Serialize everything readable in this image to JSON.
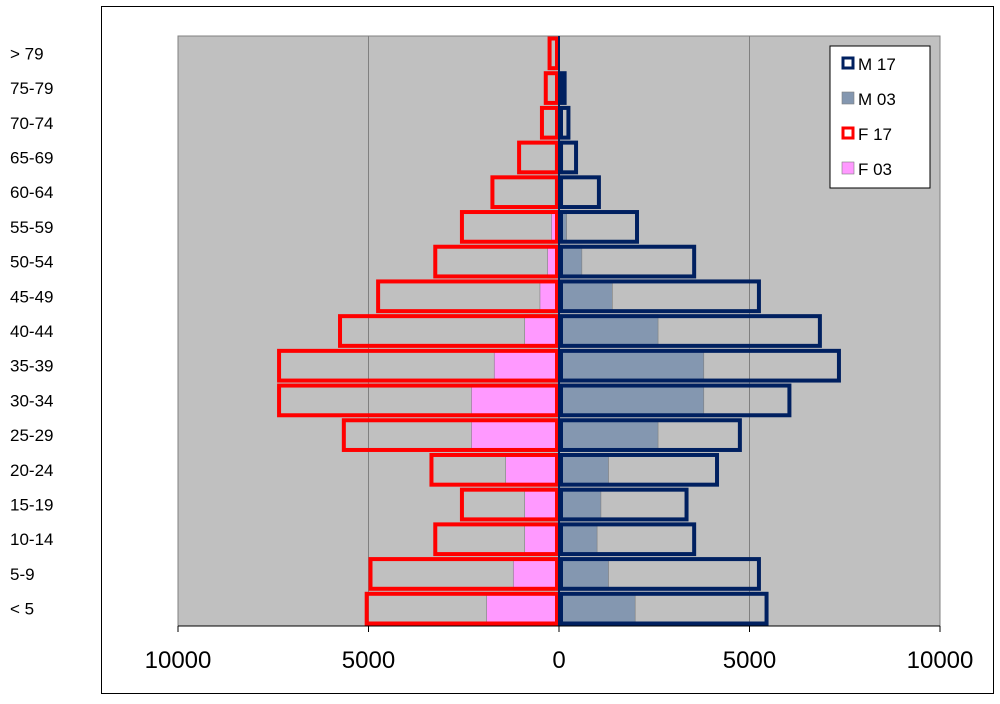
{
  "chart_data": {
    "type": "bar",
    "orientation": "horizontal",
    "layout": "population-pyramid",
    "title": "",
    "xlabel": "",
    "ylabel": "",
    "categories": [
      "< 5",
      "5-9",
      "10-14",
      "15-19",
      "20-24",
      "25-29",
      "30-34",
      "35-39",
      "40-44",
      "45-49",
      "50-54",
      "55-59",
      "60-64",
      "65-69",
      "70-74",
      "75-79",
      "> 79"
    ],
    "xlim": [
      -10000,
      10000
    ],
    "xticks": [
      -10000,
      -5000,
      0,
      5000,
      10000
    ],
    "xtick_labels": [
      "10000",
      "5000",
      "0",
      "5000",
      "10000"
    ],
    "gridlines": "vertical",
    "plot_background": "#c0c0c0",
    "legend_position": "top-right",
    "series": [
      {
        "name": "M 17",
        "side": "right",
        "style": "outline",
        "color": "#002060",
        "values": [
          5500,
          5300,
          3600,
          3400,
          4200,
          4800,
          6100,
          7400,
          6900,
          5300,
          3600,
          2100,
          1100,
          500,
          300,
          200,
          100
        ]
      },
      {
        "name": "M 03",
        "side": "right",
        "style": "filled",
        "color": "#8497b0",
        "values": [
          2000,
          1300,
          1000,
          1100,
          1300,
          2600,
          3800,
          3800,
          2600,
          1400,
          600,
          200,
          100,
          100,
          0,
          0,
          0
        ]
      },
      {
        "name": "F 17",
        "side": "left",
        "style": "outline",
        "color": "#ff0000",
        "values": [
          5100,
          5000,
          3300,
          2600,
          3400,
          5700,
          7400,
          7400,
          5800,
          4800,
          3300,
          2600,
          1800,
          1100,
          500,
          400,
          300
        ]
      },
      {
        "name": "F 03",
        "side": "left",
        "style": "filled",
        "color": "#ff99ff",
        "values": [
          1900,
          1200,
          900,
          900,
          1400,
          2300,
          2300,
          1700,
          900,
          500,
          300,
          200,
          100,
          100,
          0,
          0,
          0
        ]
      }
    ]
  }
}
